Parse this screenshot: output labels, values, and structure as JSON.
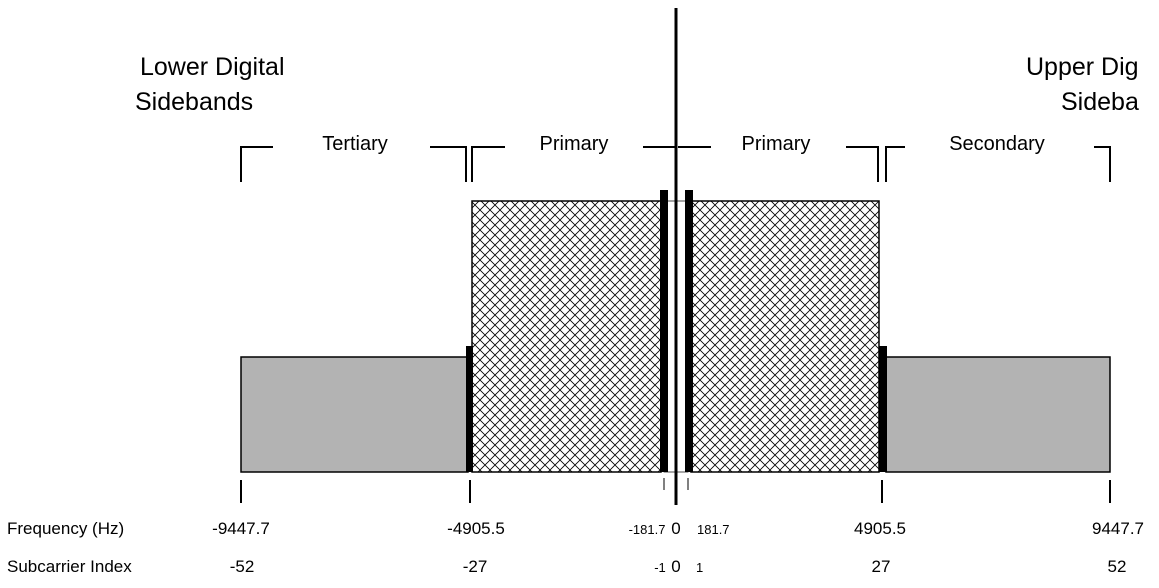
{
  "lower_title": [
    "Lower Digital",
    "Sidebands"
  ],
  "upper_title": [
    "Upper Dig",
    "Sideba"
  ],
  "regions": {
    "tertiary": "Tertiary",
    "primary_lower": "Primary",
    "primary_upper": "Primary",
    "secondary": "Secondary"
  },
  "row_labels": {
    "frequency": "Frequency (Hz)",
    "subcarrier": "Subcarrier Index"
  },
  "frequency_ticks": [
    "-9447.7",
    "-4905.5",
    "-181.7",
    "0",
    "181.7",
    "4905.5",
    "9447.7"
  ],
  "subcarrier_ticks": [
    "-52",
    "-27",
    "-1",
    "0",
    "1",
    "27",
    "52"
  ],
  "colors": {
    "secondary_tertiary_fill": "#b3b3b3",
    "primary_hatch": "#000000",
    "reference_carrier": "#000000"
  }
}
